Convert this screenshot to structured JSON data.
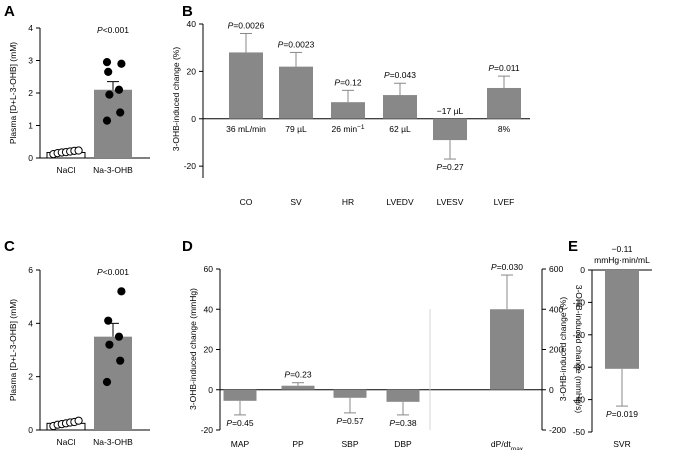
{
  "chart_data": [
    {
      "panel": "A",
      "type": "bar",
      "ylabel": "Plasma [D+L-3-OHB] (mM)",
      "ylim": [
        0,
        4
      ],
      "yticks": [
        0,
        1,
        2,
        3,
        4
      ],
      "categories": [
        "NaCl",
        "Na-3-OHB"
      ],
      "values": [
        0.17,
        2.1
      ],
      "error": [
        0.03,
        0.25
      ],
      "points": [
        [
          0.12,
          0.15,
          0.17,
          0.18,
          0.2,
          0.22,
          0.23
        ],
        [
          1.15,
          1.4,
          1.95,
          2.1,
          2.65,
          2.9,
          2.95
        ]
      ],
      "annotation": "P<0.001"
    },
    {
      "panel": "B",
      "type": "bar",
      "ylabel": "3-OHB-induced change (%)",
      "ylim": [
        -25,
        40
      ],
      "yticks": [
        -20,
        0,
        20,
        40
      ],
      "categories": [
        "CO",
        "SV",
        "HR",
        "LVEDV",
        "LVESV",
        "LVEF"
      ],
      "values": [
        28,
        22,
        7,
        10,
        -9,
        13
      ],
      "error": [
        8,
        6,
        5,
        5,
        8,
        5
      ],
      "pvalues": [
        "P=0.0026",
        "P=0.0023",
        "P=0.12",
        "P=0.043",
        "P=0.27",
        "P=0.011"
      ],
      "abs_changes": [
        "36 mL/min",
        "79 µL",
        "26 min",
        "62 µL",
        "−17 µL",
        "8%"
      ],
      "abs_change_sup": [
        "",
        "",
        "−1",
        "",
        "",
        ""
      ]
    },
    {
      "panel": "C",
      "type": "bar",
      "ylabel": "Plasma [D+L-3-OHB] (mM)",
      "ylim": [
        0,
        6
      ],
      "yticks": [
        0,
        2,
        4,
        6
      ],
      "categories": [
        "NaCl",
        "Na-3-OHB"
      ],
      "values": [
        0.25,
        3.5
      ],
      "error": [
        0.05,
        0.5
      ],
      "points": [
        [
          0.15,
          0.2,
          0.22,
          0.25,
          0.28,
          0.3,
          0.35
        ],
        [
          1.8,
          2.6,
          3.2,
          3.5,
          4.1,
          5.2
        ]
      ],
      "annotation": "P<0.001"
    },
    {
      "panel": "D",
      "type": "bar",
      "ylabel": "3-OHB-induced change (mmHg)",
      "ylabel_right": "3-OHB-induced change (mmHg/s)",
      "ylim": [
        -20,
        60
      ],
      "yticks": [
        -20,
        0,
        20,
        40,
        60
      ],
      "ylim_right": [
        -200,
        600
      ],
      "yticks_right": [
        -200,
        0,
        200,
        400,
        600
      ],
      "categories": [
        "MAP",
        "PP",
        "SBP",
        "DBP"
      ],
      "values": [
        -5.5,
        2,
        -4,
        -6
      ],
      "error": [
        7,
        1.5,
        7.5,
        6.5
      ],
      "pvalues": [
        "P=0.45",
        "P=0.23",
        "P=0.57",
        "P=0.38"
      ],
      "right_category": "dP/dt",
      "right_category_sub": "max",
      "right_value": 400,
      "right_error": 170,
      "right_pvalue": "P=0.030"
    },
    {
      "panel": "E",
      "type": "bar",
      "ylabel": "3-OHB-induced change (%)",
      "ylim": [
        -50,
        0
      ],
      "yticks": [
        0,
        -10,
        -20,
        -30,
        -40,
        -50
      ],
      "categories": [
        "SVR"
      ],
      "values": [
        -30.5
      ],
      "error": [
        11.5
      ],
      "pvalue": "P=0.019",
      "abs_change": [
        "−0.11",
        "mmHg·min/mL"
      ]
    }
  ]
}
